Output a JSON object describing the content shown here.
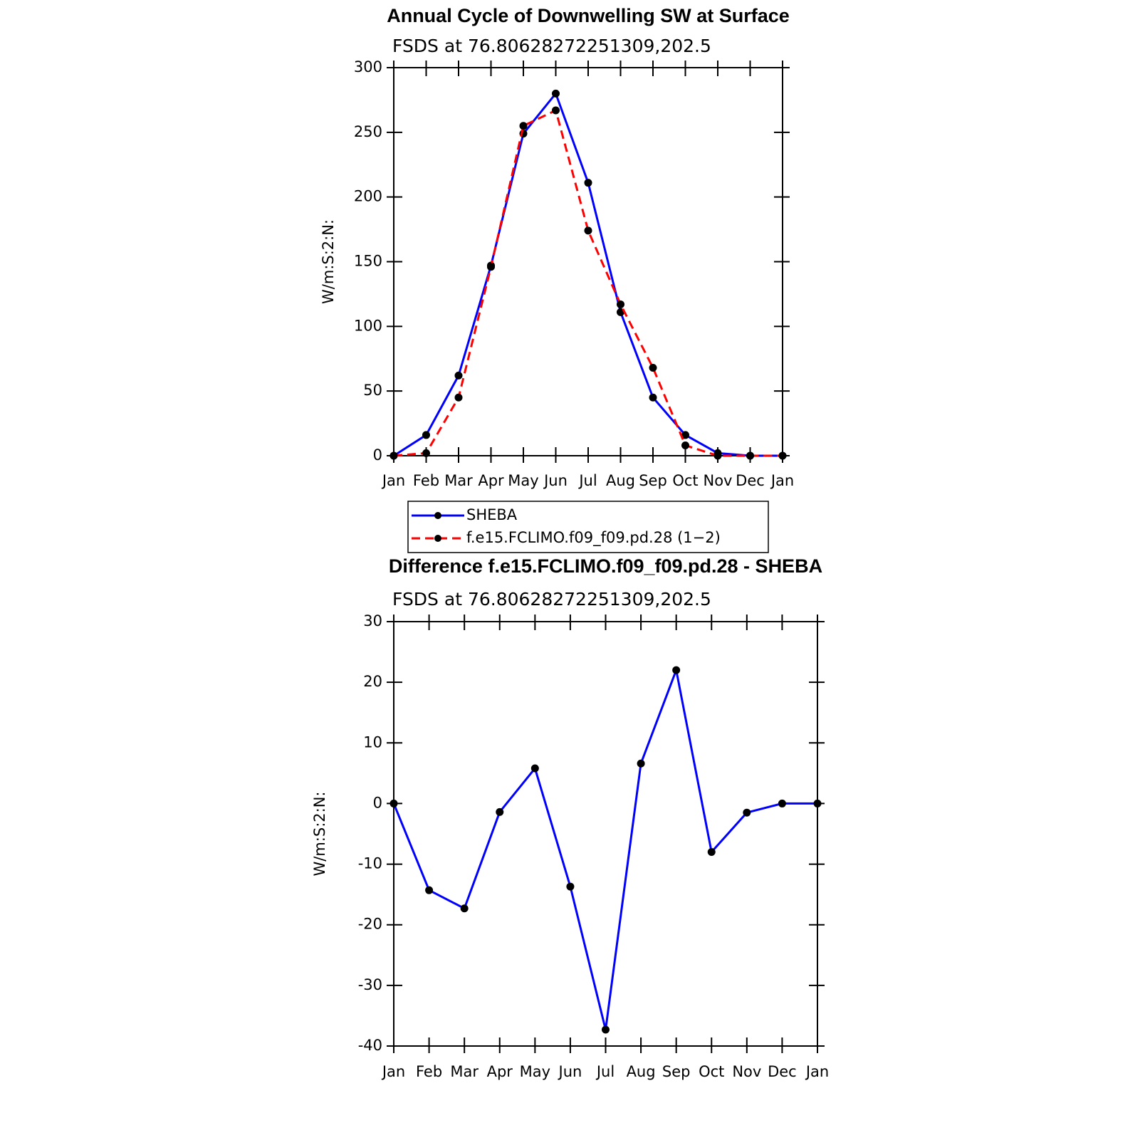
{
  "chart_data": [
    {
      "type": "line",
      "title": "Annual Cycle of Downwelling SW at Surface",
      "subtitle": "FSDS at 76.80628272251309,202.5",
      "ylabel": "W/m:S:2:N:",
      "categories": [
        "Jan",
        "Feb",
        "Mar",
        "Apr",
        "May",
        "Jun",
        "Jul",
        "Aug",
        "Sep",
        "Oct",
        "Nov",
        "Dec",
        "Jan"
      ],
      "series": [
        {
          "name": "SHEBA",
          "color": "#0000ff",
          "dash": "solid",
          "values": [
            0,
            16,
            62,
            147,
            249,
            280,
            211,
            111,
            45,
            16,
            2,
            0,
            0
          ]
        },
        {
          "name": "f.e15.FCLIMO.f09_f09.pd.28 (1−2)",
          "color": "#ff0000",
          "dash": "dashed",
          "values": [
            0,
            2,
            45,
            146,
            255,
            267,
            174,
            117,
            68,
            8,
            0,
            0,
            0
          ]
        }
      ],
      "ylim": [
        0,
        300
      ],
      "yticks": [
        0,
        50,
        100,
        150,
        200,
        250,
        300
      ],
      "legend": "bottom"
    },
    {
      "type": "line",
      "title": "Difference f.e15.FCLIMO.f09_f09.pd.28 - SHEBA",
      "subtitle": "FSDS at 76.80628272251309,202.5",
      "ylabel": "W/m:S:2:N:",
      "categories": [
        "Jan",
        "Feb",
        "Mar",
        "Apr",
        "May",
        "Jun",
        "Jul",
        "Aug",
        "Sep",
        "Oct",
        "Nov",
        "Dec",
        "Jan"
      ],
      "series": [
        {
          "color": "#0000ff",
          "dash": "solid",
          "values": [
            0,
            -14.3,
            -17.3,
            -1.4,
            5.8,
            -13.7,
            -37.3,
            6.6,
            22.0,
            -8.0,
            -1.5,
            0,
            0
          ]
        }
      ],
      "ylim": [
        -40,
        30
      ],
      "yticks": [
        -40,
        -30,
        -20,
        -10,
        0,
        10,
        20,
        30
      ]
    }
  ]
}
